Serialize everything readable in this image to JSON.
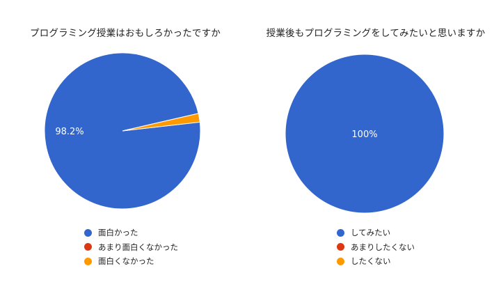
{
  "chart_data": [
    {
      "type": "pie",
      "title": "プログラミング授業はおもしろかったですか",
      "categories": [
        "面白かった",
        "あまり面白くなかった",
        "面白くなかった"
      ],
      "values": [
        98.2,
        0,
        1.8
      ],
      "colors": [
        "#3366cc",
        "#dc3912",
        "#ff9900"
      ],
      "data_labels": [
        "98.2%",
        "",
        ""
      ],
      "legend_position": "bottom"
    },
    {
      "type": "pie",
      "title": "授業後もプログラミングをしてみたいと思いますか",
      "categories": [
        "してみたい",
        "あまりしたくない",
        "したくない"
      ],
      "values": [
        100,
        0,
        0
      ],
      "colors": [
        "#3366cc",
        "#dc3912",
        "#ff9900"
      ],
      "data_labels": [
        "100%",
        "",
        ""
      ],
      "legend_position": "bottom"
    }
  ]
}
